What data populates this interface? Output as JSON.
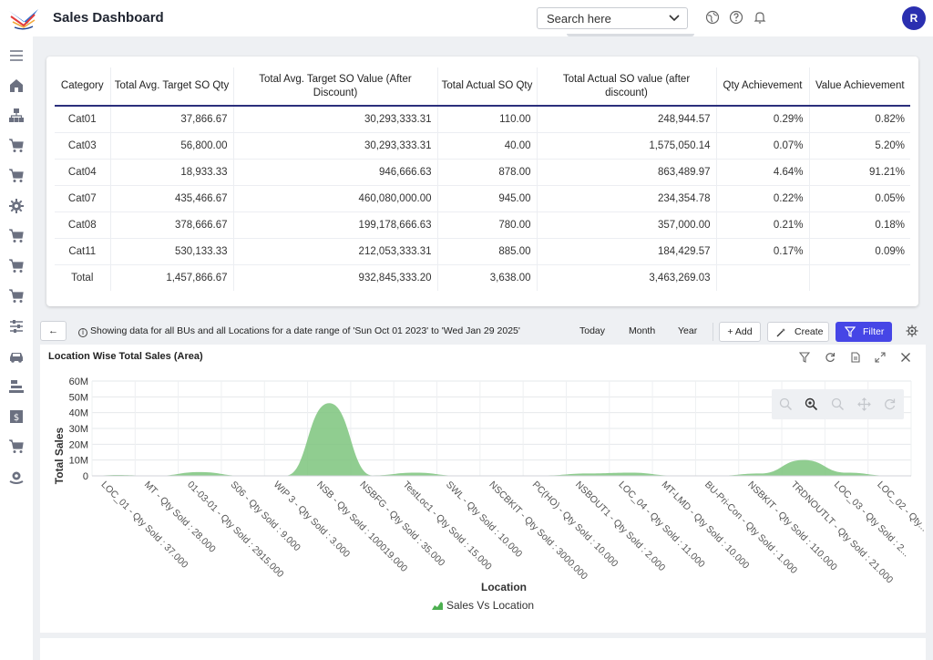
{
  "header": {
    "title": "Sales Dashboard",
    "search_placeholder": "Search here",
    "avatar_initial": "R"
  },
  "sidebar": {
    "icons": [
      "menu-icon",
      "home-icon",
      "org-chart-icon",
      "cart-icon",
      "cart-icon",
      "settings-icon",
      "cart-icon",
      "cart-icon",
      "cart-icon",
      "sliders-icon",
      "car-icon",
      "layers-icon",
      "invoice-icon",
      "cart-icon",
      "gear-hand-icon"
    ]
  },
  "table": {
    "headers": [
      "Category",
      "Total Avg. Target SO Qty",
      "Total Avg. Target SO Value (After Discount)",
      "Total Actual SO Qty",
      "Total Actual SO value (after discount)",
      "Qty Achievement",
      "Value Achievement"
    ],
    "rows": [
      [
        "Cat01",
        "37,866.67",
        "30,293,333.31",
        "110.00",
        "248,944.57",
        "0.29%",
        "0.82%"
      ],
      [
        "Cat03",
        "56,800.00",
        "30,293,333.31",
        "40.00",
        "1,575,050.14",
        "0.07%",
        "5.20%"
      ],
      [
        "Cat04",
        "18,933.33",
        "946,666.63",
        "878.00",
        "863,489.97",
        "4.64%",
        "91.21%"
      ],
      [
        "Cat07",
        "435,466.67",
        "460,080,000.00",
        "945.00",
        "234,354.78",
        "0.22%",
        "0.05%"
      ],
      [
        "Cat08",
        "378,666.67",
        "199,178,666.63",
        "780.00",
        "357,000.00",
        "0.21%",
        "0.18%"
      ],
      [
        "Cat11",
        "530,133.33",
        "212,053,333.31",
        "885.00",
        "184,429.57",
        "0.17%",
        "0.09%"
      ],
      [
        "Total",
        "1,457,866.67",
        "932,845,333.20",
        "3,638.00",
        "3,463,269.03",
        "",
        ""
      ]
    ]
  },
  "toolbar": {
    "back_label": "←",
    "info_text": "Showing data for all BUs and all Locations for a date range of 'Sun Oct 01 2023' to 'Wed Jan 29 2025'",
    "today_label": "Today",
    "month_label": "Month",
    "year_label": "Year",
    "add_label": "+ Add",
    "create_label": "Create",
    "filter_label": "Filter"
  },
  "chart_card": {
    "title": "Location Wise Total Sales (Area)",
    "legend_label": "Sales Vs Location"
  },
  "chart_data": {
    "type": "area",
    "title": "Location Wise Total Sales (Area)",
    "xlabel": "Location",
    "ylabel": "Total Sales",
    "ylim": [
      0,
      60000000
    ],
    "yticks": [
      "0",
      "10M",
      "20M",
      "30M",
      "40M",
      "50M",
      "60M"
    ],
    "categories": [
      "LOC_01 - Qty Sold : 37.000",
      "MT - Qty Sold : 28.000",
      "01-03-01 - Qty Sold : 2915.000",
      "S06 - Qty Sold : 9.000",
      "WIP 3 - Qty Sold : 3.000",
      "NSB - Qty Sold : 100019.000",
      "NSBFG - Qty Sold : 35.000",
      "TestLoc1 - Qty Sold : 15.000",
      "SWL - Qty Sold : 10.000",
      "NSCBKIT - Qty Sold : 3000.000",
      "PC(HO) - Qty Sold : 10.000",
      "NSBOUT1 - Qty Sold : 2.000",
      "LOC_04 - Qty Sold : 11.000",
      "MT-LMD - Qty Sold : 10.000",
      "BU-Pri-Con - Qty Sold : 1.000",
      "NSBKIT - Qty Sold : 110.000",
      "TRDNOUTLT - Qty Sold : 21.000",
      "LOC_03 - Qty Sold : 2...",
      "LOC_02 - Qty..."
    ],
    "series": [
      {
        "name": "Sales Vs Location",
        "color": "#7cc47c",
        "values": [
          600000,
          100000,
          2400000,
          100000,
          200000,
          46000000,
          300000,
          2000000,
          100000,
          100000,
          300000,
          1500000,
          2000000,
          200000,
          100000,
          1500000,
          10000000,
          2000000,
          100000
        ]
      }
    ],
    "grid": true,
    "legend": "bottom-center"
  }
}
